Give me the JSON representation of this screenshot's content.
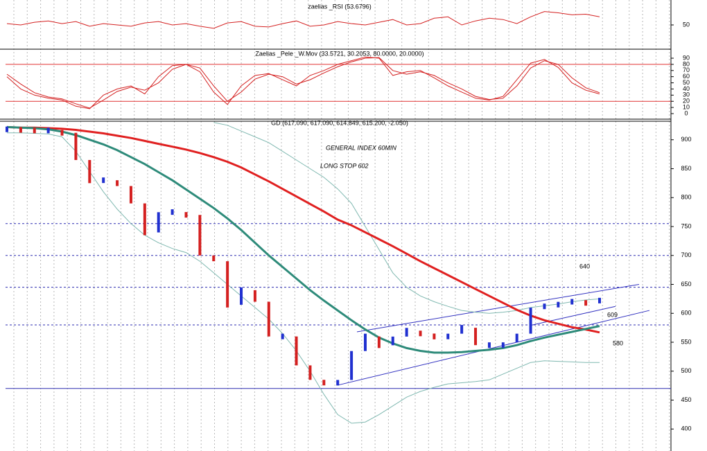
{
  "chart_data": [
    {
      "type": "line",
      "title": "zaelias _RSI (53.6796)",
      "categories": [
        null,
        null,
        null,
        null,
        null,
        null,
        null,
        null,
        null,
        null,
        null,
        null,
        null,
        null,
        null,
        null,
        null,
        null,
        null,
        null,
        null,
        null,
        null,
        null,
        null,
        null,
        null,
        null,
        null,
        null,
        null,
        null,
        null,
        null,
        null,
        null,
        null,
        null,
        null,
        null,
        null,
        null,
        null,
        null
      ],
      "ylim": [
        15,
        85
      ],
      "yticks": [
        50
      ],
      "series": [
        {
          "color": "#d42020",
          "style": "thin",
          "values": [
            52,
            50,
            54,
            56,
            52,
            55,
            48,
            52,
            50,
            48,
            53,
            55,
            50,
            52,
            48,
            45,
            53,
            55,
            48,
            47,
            52,
            56,
            48,
            50,
            55,
            52,
            50,
            54,
            58,
            50,
            52,
            60,
            62,
            50,
            56,
            60,
            58,
            52,
            62,
            70,
            68,
            65,
            66,
            62
          ]
        }
      ]
    },
    {
      "type": "line",
      "title": "Zaelias _Pele _W.Mov (33.5721, 30.2053, 80.0000, 20.0000)",
      "categories": [
        null,
        null,
        null,
        null,
        null,
        null,
        null,
        null,
        null,
        null,
        null,
        null,
        null,
        null,
        null,
        null,
        null,
        null,
        null,
        null,
        null,
        null,
        null,
        null,
        null,
        null,
        null,
        null,
        null,
        null,
        null,
        null,
        null,
        null,
        null,
        null,
        null,
        null,
        null,
        null,
        null,
        null,
        null,
        null
      ],
      "ylim": [
        -9,
        103.5
      ],
      "yticks": [
        0,
        10,
        20,
        30,
        40,
        50,
        60,
        70,
        80,
        90
      ],
      "hlines": [
        80,
        20
      ],
      "hline_color": "#e03030",
      "hline_style": "solid",
      "series": [
        {
          "color": "#d42020",
          "style": "thin",
          "values": [
            60,
            40,
            30,
            25,
            22,
            12,
            8,
            30,
            40,
            45,
            32,
            60,
            78,
            80,
            68,
            35,
            15,
            45,
            62,
            65,
            55,
            45,
            62,
            70,
            80,
            86,
            92,
            90,
            62,
            68,
            70,
            58,
            45,
            35,
            25,
            22,
            28,
            55,
            82,
            88,
            75,
            50,
            38,
            32
          ]
        },
        {
          "color": "#d42020",
          "style": "thin",
          "values": [
            64,
            48,
            34,
            27,
            24,
            16,
            9,
            22,
            36,
            43,
            38,
            50,
            72,
            80,
            74,
            45,
            20,
            35,
            56,
            64,
            60,
            48,
            55,
            66,
            76,
            84,
            90,
            91,
            70,
            64,
            68,
            62,
            50,
            40,
            28,
            23,
            25,
            45,
            74,
            86,
            80,
            58,
            42,
            34
          ]
        }
      ]
    },
    {
      "type": "line",
      "title": "GD (617.090, 617.090, 614.849, 615.200, -2.050)",
      "categories": [
        null,
        null,
        null,
        null,
        null,
        null,
        null,
        null,
        null,
        null,
        null,
        null,
        null,
        null,
        null,
        null,
        null,
        null,
        null,
        null,
        null,
        null,
        null,
        null,
        null,
        null,
        null,
        null,
        null,
        null,
        null,
        null,
        null,
        null,
        null,
        null,
        null,
        null,
        null,
        null,
        null,
        null,
        null,
        null
      ],
      "ylim": [
        362,
        932
      ],
      "yticks": [
        400,
        450,
        500,
        550,
        600,
        650,
        700,
        750,
        800,
        850,
        900
      ],
      "hlines": [
        755,
        700,
        645,
        580,
        470
      ],
      "hline_color": "#2b2bb0",
      "hline_style": "dashed",
      "channels": [
        {
          "start": 476,
          "end": 605
        },
        {
          "start": 568,
          "end": 650
        },
        {
          "start": 579,
          "end": 612
        }
      ],
      "annotations": [
        "GENERAL INDEX 60MIN",
        "LONG STOP 602",
        "640",
        "609",
        "580"
      ],
      "series": [
        {
          "color": "#7fb8b0",
          "style": "thin",
          "values": [
            null,
            null,
            null,
            null,
            null,
            null,
            null,
            null,
            null,
            null,
            null,
            null,
            null,
            null,
            null,
            930,
            925,
            915,
            905,
            895,
            880,
            865,
            850,
            835,
            815,
            790,
            750,
            710,
            670,
            645,
            630,
            620,
            612,
            605,
            602,
            600,
            602,
            605,
            610,
            613,
            616,
            620,
            623,
            625
          ]
        },
        {
          "color": "#7fb8b0",
          "style": "thin",
          "values": [
            912,
            912,
            911,
            910,
            905,
            880,
            845,
            810,
            780,
            755,
            735,
            722,
            712,
            705,
            690,
            670,
            650,
            630,
            610,
            590,
            565,
            535,
            500,
            460,
            425,
            410,
            412,
            425,
            440,
            455,
            465,
            472,
            478,
            480,
            482,
            485,
            495,
            505,
            515,
            518,
            517,
            516,
            515,
            515
          ]
        },
        {
          "color": "#e02020",
          "style": "thick",
          "values": [
            922,
            921,
            921,
            920,
            919,
            917,
            914,
            911,
            907,
            903,
            898,
            893,
            888,
            883,
            877,
            870,
            862,
            852,
            840,
            828,
            815,
            802,
            789,
            776,
            762,
            752,
            740,
            728,
            716,
            703,
            690,
            678,
            666,
            654,
            642,
            630,
            618,
            606,
            596,
            588,
            582,
            576,
            572,
            567
          ]
        },
        {
          "color": "#2e8b7a",
          "style": "thick",
          "values": [
            922,
            921,
            920,
            918,
            914,
            908,
            900,
            892,
            882,
            870,
            858,
            844,
            830,
            814,
            798,
            782,
            764,
            744,
            722,
            700,
            680,
            660,
            640,
            622,
            605,
            588,
            572,
            558,
            548,
            540,
            535,
            532,
            532,
            533,
            535,
            537,
            540,
            545,
            552,
            558,
            563,
            568,
            573,
            578
          ]
        },
        {
          "color": "#d42020",
          "style": "candles",
          "values": [
            918,
            917,
            916,
            916,
            912,
            865,
            825,
            830,
            820,
            790,
            735,
            770,
            775,
            770,
            700,
            690,
            610,
            640,
            620,
            560,
            560,
            510,
            485,
            480,
            480,
            530,
            560,
            540,
            555,
            570,
            565,
            555,
            560,
            575,
            545,
            545,
            545,
            560,
            605,
            612,
            615,
            620,
            618,
            622
          ]
        }
      ]
    }
  ]
}
